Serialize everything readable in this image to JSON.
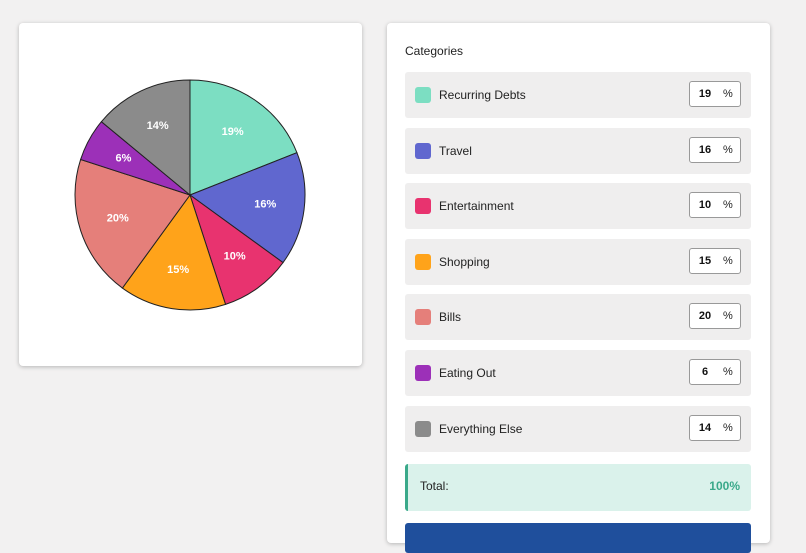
{
  "chart_data": {
    "type": "pie",
    "categories": [
      "Recurring Debts",
      "Travel",
      "Entertainment",
      "Shopping",
      "Bills",
      "Eating Out",
      "Everything Else"
    ],
    "values": [
      19,
      16,
      10,
      15,
      20,
      6,
      14
    ],
    "value_labels": [
      "19%",
      "16%",
      "10%",
      "15%",
      "20%",
      "6%",
      "14%"
    ],
    "colors": [
      "#7cdec2",
      "#6067cf",
      "#e8336f",
      "#ffa31a",
      "#e57f7a",
      "#9c30b8",
      "#8b8b8b"
    ]
  },
  "panel": {
    "title": "Categories",
    "unit": "%",
    "total_label": "Total:",
    "total": {
      "value": 100,
      "label": "100%"
    }
  }
}
